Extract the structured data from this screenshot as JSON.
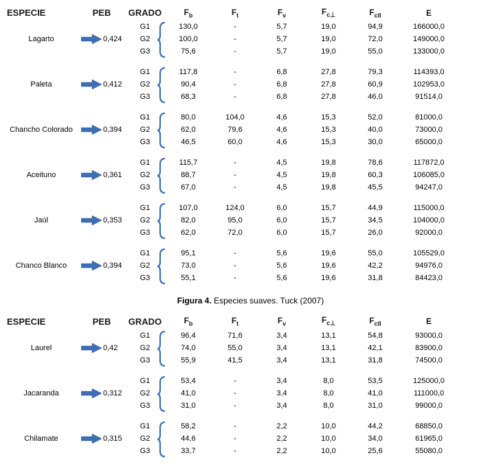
{
  "colors": {
    "arrow_fill": "#3d6fb5",
    "arrow_stroke": "#2a4f85",
    "bracket": "#3d6fb5",
    "text": "#000000",
    "bg": "#ffffff"
  },
  "headers": {
    "especie": "ESPECIE",
    "peb": "PEB",
    "grado": "GRADO",
    "fb": "F",
    "fb_sub": "b",
    "ft": "F",
    "ft_sub": "t",
    "fv": "F",
    "fv_sub": "v",
    "fcl": "F",
    "fcl_sub": "c⊥",
    "fcll": "F",
    "fcll_sub": "cII",
    "e": "E"
  },
  "caption": {
    "bold": "Figura 4.",
    "rest": " Especies suaves. Tuck (2007)"
  },
  "tables": [
    {
      "species": [
        {
          "name": "Lagarto",
          "peb": "0,424",
          "grades": [
            {
              "g": "G1",
              "fb": "130,0",
              "ft": "-",
              "fv": "5,7",
              "fcl": "19,0",
              "fcll": "94,9",
              "e": "166000,0"
            },
            {
              "g": "G2",
              "fb": "100,0",
              "ft": "-",
              "fv": "5,7",
              "fcl": "19,0",
              "fcll": "72,0",
              "e": "149000,0"
            },
            {
              "g": "G3",
              "fb": "75,6",
              "ft": "-",
              "fv": "5,7",
              "fcl": "19,0",
              "fcll": "55,0",
              "e": "133000,0"
            }
          ]
        },
        {
          "name": "Paleta",
          "peb": "0,412",
          "grades": [
            {
              "g": "G1",
              "fb": "117,8",
              "ft": "-",
              "fv": "6,8",
              "fcl": "27,8",
              "fcll": "79,3",
              "e": "114393,0"
            },
            {
              "g": "G2",
              "fb": "90,4",
              "ft": "-",
              "fv": "6,8",
              "fcl": "27,8",
              "fcll": "60,9",
              "e": "102953,0"
            },
            {
              "g": "G3",
              "fb": "68,3",
              "ft": "-",
              "fv": "6,8",
              "fcl": "27,8",
              "fcll": "46,0",
              "e": "91514,0"
            }
          ]
        },
        {
          "name": "Chancho Colorado",
          "peb": "0,394",
          "grades": [
            {
              "g": "G1",
              "fb": "80,0",
              "ft": "104,0",
              "fv": "4,6",
              "fcl": "15,3",
              "fcll": "52,0",
              "e": "81000,0"
            },
            {
              "g": "G2",
              "fb": "62,0",
              "ft": "79,6",
              "fv": "4,6",
              "fcl": "15,3",
              "fcll": "40,0",
              "e": "73000,0"
            },
            {
              "g": "G3",
              "fb": "46,5",
              "ft": "60,0",
              "fv": "4,6",
              "fcl": "15,3",
              "fcll": "30,0",
              "e": "65000,0"
            }
          ]
        },
        {
          "name": "Aceituno",
          "peb": "0,361",
          "grades": [
            {
              "g": "G1",
              "fb": "115,7",
              "ft": "-",
              "fv": "4,5",
              "fcl": "19,8",
              "fcll": "78,6",
              "e": "117872,0"
            },
            {
              "g": "G2",
              "fb": "88,7",
              "ft": "-",
              "fv": "4,5",
              "fcl": "19,8",
              "fcll": "60,3",
              "e": "106085,0"
            },
            {
              "g": "G3",
              "fb": "67,0",
              "ft": "-",
              "fv": "4,5",
              "fcl": "19,8",
              "fcll": "45,5",
              "e": "94247,0"
            }
          ]
        },
        {
          "name": "Jaúl",
          "peb": "0,353",
          "grades": [
            {
              "g": "G1",
              "fb": "107,0",
              "ft": "124,0",
              "fv": "6,0",
              "fcl": "15,7",
              "fcll": "44,9",
              "e": "115000,0"
            },
            {
              "g": "G2",
              "fb": "82,0",
              "ft": "95,0",
              "fv": "6,0",
              "fcl": "15,7",
              "fcll": "34,5",
              "e": "104000,0"
            },
            {
              "g": "G3",
              "fb": "62,0",
              "ft": "72,0",
              "fv": "6,0",
              "fcl": "15,7",
              "fcll": "26,0",
              "e": "92000,0"
            }
          ]
        },
        {
          "name": "Chanco Blanco",
          "peb": "0,394",
          "grades": [
            {
              "g": "G1",
              "fb": "95,1",
              "ft": "-",
              "fv": "5,6",
              "fcl": "19,6",
              "fcll": "55,0",
              "e": "105529,0"
            },
            {
              "g": "G2",
              "fb": "73,0",
              "ft": "-",
              "fv": "5,6",
              "fcl": "19,6",
              "fcll": "42,2",
              "e": "94976,0"
            },
            {
              "g": "G3",
              "fb": "55,1",
              "ft": "-",
              "fv": "5,6",
              "fcl": "19,6",
              "fcll": "31,8",
              "e": "84423,0"
            }
          ]
        }
      ]
    },
    {
      "species": [
        {
          "name": "Laurel",
          "peb": "0,42",
          "grades": [
            {
              "g": "G1",
              "fb": "96,4",
              "ft": "71,6",
              "fv": "3,4",
              "fcl": "13,1",
              "fcll": "54,8",
              "e": "93000,0"
            },
            {
              "g": "G2",
              "fb": "74,0",
              "ft": "55,0",
              "fv": "3,4",
              "fcl": "13,1",
              "fcll": "42,1",
              "e": "83900,0"
            },
            {
              "g": "G3",
              "fb": "55,9",
              "ft": "41,5",
              "fv": "3,4",
              "fcl": "13,1",
              "fcll": "31,8",
              "e": "74500,0"
            }
          ]
        },
        {
          "name": "Jacaranda",
          "peb": "0,312",
          "grades": [
            {
              "g": "G1",
              "fb": "53,4",
              "ft": "-",
              "fv": "3,4",
              "fcl": "8,0",
              "fcll": "53,5",
              "e": "125000,0"
            },
            {
              "g": "G2",
              "fb": "41,0",
              "ft": "-",
              "fv": "3,4",
              "fcl": "8,0",
              "fcll": "41,0",
              "e": "111000,0"
            },
            {
              "g": "G3",
              "fb": "31,0",
              "ft": "-",
              "fv": "3,4",
              "fcl": "8,0",
              "fcll": "31,0",
              "e": "99000,0"
            }
          ]
        },
        {
          "name": "Chilamate",
          "peb": "0,315",
          "grades": [
            {
              "g": "G1",
              "fb": "58,2",
              "ft": "-",
              "fv": "2,2",
              "fcl": "10,0",
              "fcll": "44,2",
              "e": "68850,0"
            },
            {
              "g": "G2",
              "fb": "44,6",
              "ft": "-",
              "fv": "2,2",
              "fcl": "10,0",
              "fcll": "34,0",
              "e": "61965,0"
            },
            {
              "g": "G3",
              "fb": "33,7",
              "ft": "-",
              "fv": "2,2",
              "fcl": "10,0",
              "fcll": "25,6",
              "e": "55080,0"
            }
          ]
        }
      ]
    }
  ]
}
